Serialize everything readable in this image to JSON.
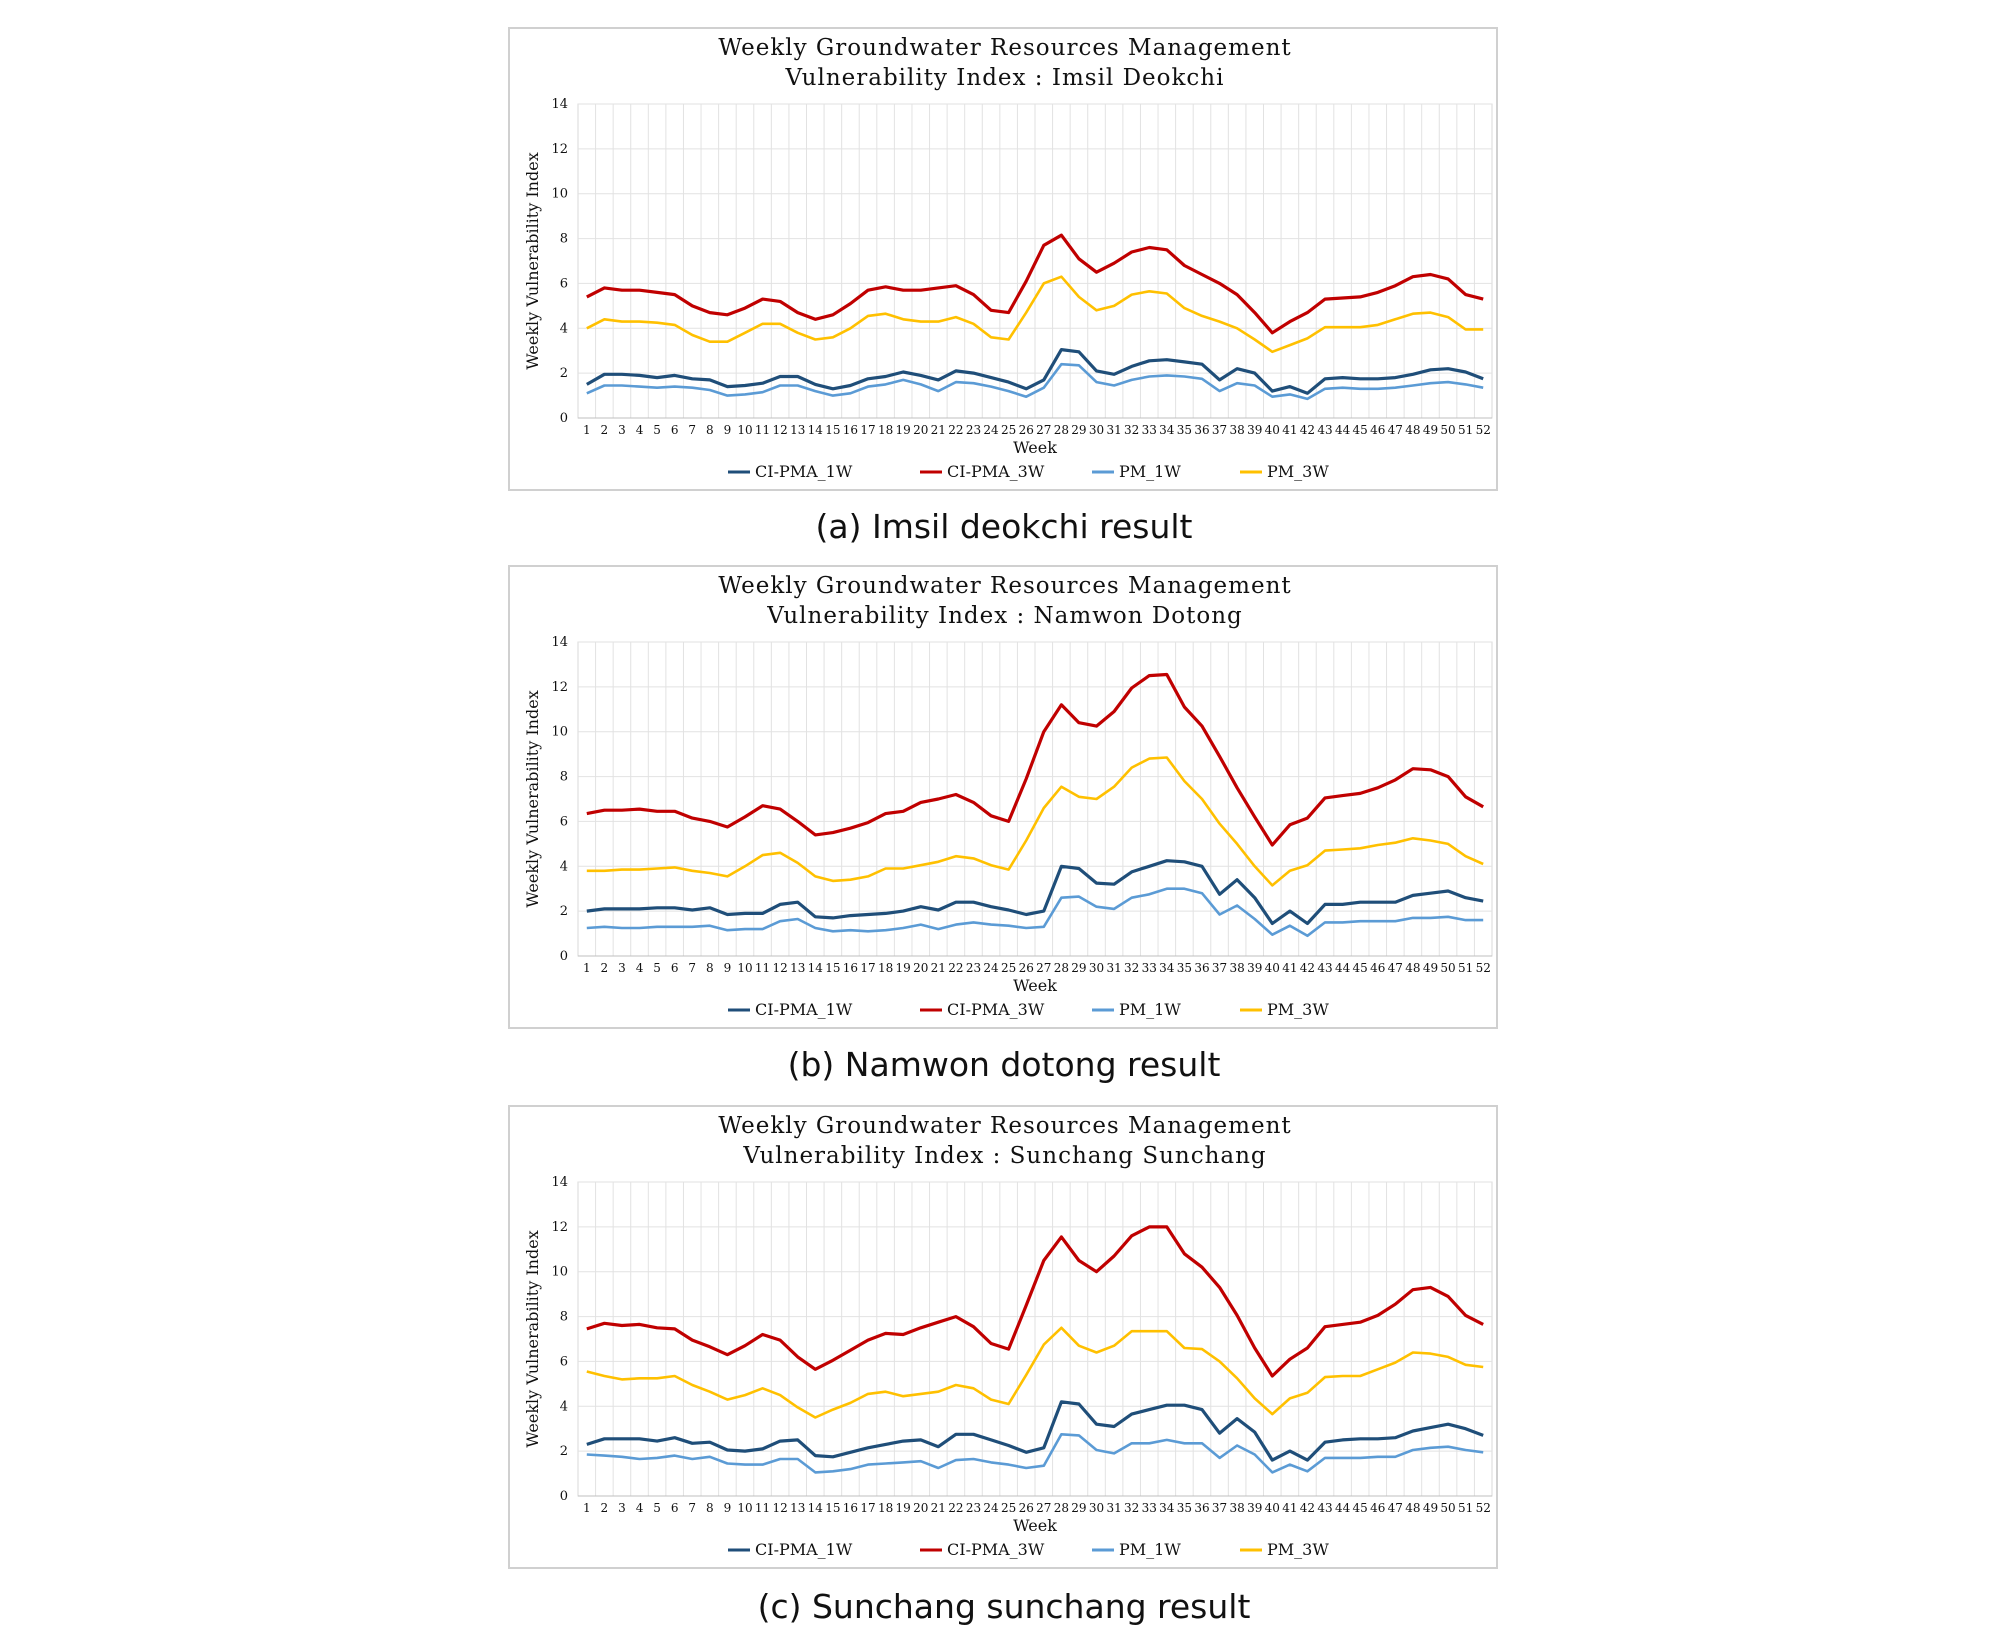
{
  "chart_data": [
    {
      "type": "line",
      "title_lines": [
        "Weekly Groundwater Resources Management",
        "Vulnerability Index : Imsil Deokchi"
      ],
      "caption": "(a) Imsil deokchi result",
      "xlabel": "Week",
      "ylabel": "Weekly Vulnerability Index",
      "ylim": [
        0,
        14
      ],
      "yticks": [
        0,
        2,
        4,
        6,
        8,
        10,
        12,
        14
      ],
      "grid": "on",
      "legend_position": "bottom",
      "x": [
        1,
        2,
        3,
        4,
        5,
        6,
        7,
        8,
        9,
        10,
        11,
        12,
        13,
        14,
        15,
        16,
        17,
        18,
        19,
        20,
        21,
        22,
        23,
        24,
        25,
        26,
        27,
        28,
        29,
        30,
        31,
        32,
        33,
        34,
        35,
        36,
        37,
        38,
        39,
        40,
        41,
        42,
        43,
        44,
        45,
        46,
        47,
        48,
        49,
        50,
        51,
        52
      ],
      "series": [
        {
          "name": "CI-PMA_1W",
          "color": "#1f4e79",
          "values": [
            1.5,
            1.95,
            1.95,
            1.9,
            1.8,
            1.9,
            1.75,
            1.7,
            1.4,
            1.45,
            1.55,
            1.85,
            1.85,
            1.5,
            1.3,
            1.45,
            1.75,
            1.85,
            2.05,
            1.9,
            1.7,
            2.1,
            2.0,
            1.8,
            1.6,
            1.3,
            1.7,
            3.05,
            2.95,
            2.1,
            1.95,
            2.3,
            2.55,
            2.6,
            2.5,
            2.4,
            1.7,
            2.2,
            2.0,
            1.2,
            1.4,
            1.1,
            1.75,
            1.8,
            1.75,
            1.75,
            1.8,
            1.95,
            2.15,
            2.2,
            2.05,
            1.75
          ]
        },
        {
          "name": "CI-PMA_3W",
          "color": "#c00000",
          "values": [
            5.4,
            5.8,
            5.7,
            5.7,
            5.6,
            5.5,
            5.0,
            4.7,
            4.6,
            4.9,
            5.3,
            5.2,
            4.7,
            4.4,
            4.6,
            5.1,
            5.7,
            5.85,
            5.7,
            5.7,
            5.8,
            5.9,
            5.5,
            4.8,
            4.7,
            6.1,
            7.7,
            8.15,
            7.1,
            6.5,
            6.9,
            7.4,
            7.6,
            7.5,
            6.8,
            6.4,
            6.0,
            5.5,
            4.7,
            3.8,
            4.3,
            4.7,
            5.3,
            5.35,
            5.4,
            5.6,
            5.9,
            6.3,
            6.4,
            6.2,
            5.5,
            5.3
          ]
        },
        {
          "name": "PM_1W",
          "color": "#5b9bd5",
          "values": [
            1.1,
            1.45,
            1.45,
            1.4,
            1.35,
            1.4,
            1.35,
            1.25,
            1.0,
            1.05,
            1.15,
            1.45,
            1.45,
            1.2,
            1.0,
            1.1,
            1.4,
            1.5,
            1.7,
            1.5,
            1.2,
            1.6,
            1.55,
            1.4,
            1.2,
            0.95,
            1.35,
            2.4,
            2.35,
            1.6,
            1.45,
            1.7,
            1.85,
            1.9,
            1.85,
            1.75,
            1.2,
            1.55,
            1.45,
            0.95,
            1.05,
            0.85,
            1.3,
            1.35,
            1.3,
            1.3,
            1.35,
            1.45,
            1.55,
            1.6,
            1.5,
            1.35
          ]
        },
        {
          "name": "PM_3W",
          "color": "#ffc000",
          "values": [
            4.0,
            4.4,
            4.3,
            4.3,
            4.25,
            4.15,
            3.7,
            3.4,
            3.4,
            3.8,
            4.2,
            4.2,
            3.8,
            3.5,
            3.6,
            4.0,
            4.55,
            4.65,
            4.4,
            4.3,
            4.3,
            4.5,
            4.2,
            3.6,
            3.5,
            4.7,
            6.0,
            6.3,
            5.4,
            4.8,
            5.0,
            5.5,
            5.65,
            5.55,
            4.9,
            4.55,
            4.3,
            4.0,
            3.5,
            2.95,
            3.25,
            3.55,
            4.05,
            4.05,
            4.05,
            4.15,
            4.4,
            4.65,
            4.7,
            4.5,
            3.95,
            3.95
          ]
        }
      ]
    },
    {
      "type": "line",
      "title_lines": [
        "Weekly Groundwater Resources Management",
        "Vulnerability Index : Namwon Dotong"
      ],
      "caption": "(b) Namwon dotong result",
      "xlabel": "Week",
      "ylabel": "Weekly Vulnerability Index",
      "ylim": [
        0,
        14
      ],
      "yticks": [
        0,
        2,
        4,
        6,
        8,
        10,
        12,
        14
      ],
      "grid": "on",
      "legend_position": "bottom",
      "x": [
        1,
        2,
        3,
        4,
        5,
        6,
        7,
        8,
        9,
        10,
        11,
        12,
        13,
        14,
        15,
        16,
        17,
        18,
        19,
        20,
        21,
        22,
        23,
        24,
        25,
        26,
        27,
        28,
        29,
        30,
        31,
        32,
        33,
        34,
        35,
        36,
        37,
        38,
        39,
        40,
        41,
        42,
        43,
        44,
        45,
        46,
        47,
        48,
        49,
        50,
        51,
        52
      ],
      "series": [
        {
          "name": "CI-PMA_1W",
          "color": "#1f4e79",
          "values": [
            2.0,
            2.1,
            2.1,
            2.1,
            2.15,
            2.15,
            2.05,
            2.15,
            1.85,
            1.9,
            1.9,
            2.3,
            2.4,
            1.75,
            1.7,
            1.8,
            1.85,
            1.9,
            2.0,
            2.2,
            2.05,
            2.4,
            2.4,
            2.2,
            2.05,
            1.85,
            2.0,
            4.0,
            3.9,
            3.25,
            3.2,
            3.75,
            4.0,
            4.25,
            4.2,
            4.0,
            2.75,
            3.4,
            2.6,
            1.45,
            2.0,
            1.45,
            2.3,
            2.3,
            2.4,
            2.4,
            2.4,
            2.7,
            2.8,
            2.9,
            2.6,
            2.45
          ]
        },
        {
          "name": "CI-PMA_3W",
          "color": "#c00000",
          "values": [
            6.35,
            6.5,
            6.5,
            6.55,
            6.45,
            6.45,
            6.15,
            6.0,
            5.75,
            6.2,
            6.7,
            6.55,
            6.0,
            5.4,
            5.5,
            5.7,
            5.95,
            6.35,
            6.45,
            6.85,
            7.0,
            7.2,
            6.85,
            6.25,
            6.0,
            7.9,
            10.0,
            11.2,
            10.4,
            10.25,
            10.9,
            11.95,
            12.5,
            12.55,
            11.1,
            10.25,
            8.9,
            7.5,
            6.2,
            4.95,
            5.85,
            6.15,
            7.05,
            7.15,
            7.25,
            7.5,
            7.85,
            8.35,
            8.3,
            8.0,
            7.1,
            6.65
          ]
        },
        {
          "name": "PM_1W",
          "color": "#5b9bd5",
          "values": [
            1.25,
            1.3,
            1.25,
            1.25,
            1.3,
            1.3,
            1.3,
            1.35,
            1.15,
            1.2,
            1.2,
            1.55,
            1.65,
            1.25,
            1.1,
            1.15,
            1.1,
            1.15,
            1.25,
            1.4,
            1.2,
            1.4,
            1.5,
            1.4,
            1.35,
            1.25,
            1.3,
            2.6,
            2.65,
            2.2,
            2.1,
            2.6,
            2.75,
            3.0,
            3.0,
            2.8,
            1.85,
            2.25,
            1.65,
            0.95,
            1.35,
            0.9,
            1.5,
            1.5,
            1.55,
            1.55,
            1.55,
            1.7,
            1.7,
            1.75,
            1.6,
            1.6
          ]
        },
        {
          "name": "PM_3W",
          "color": "#ffc000",
          "values": [
            3.8,
            3.8,
            3.85,
            3.85,
            3.9,
            3.95,
            3.8,
            3.7,
            3.55,
            4.0,
            4.5,
            4.6,
            4.15,
            3.55,
            3.35,
            3.4,
            3.55,
            3.9,
            3.9,
            4.05,
            4.2,
            4.45,
            4.35,
            4.05,
            3.85,
            5.15,
            6.6,
            7.55,
            7.1,
            7.0,
            7.55,
            8.4,
            8.8,
            8.85,
            7.8,
            7.0,
            5.9,
            5.0,
            4.0,
            3.15,
            3.8,
            4.05,
            4.7,
            4.75,
            4.8,
            4.95,
            5.05,
            5.25,
            5.15,
            5.0,
            4.45,
            4.1
          ]
        }
      ]
    },
    {
      "type": "line",
      "title_lines": [
        "Weekly Groundwater Resources Management",
        "Vulnerability Index : Sunchang Sunchang"
      ],
      "caption": "(c) Sunchang sunchang result",
      "xlabel": "Week",
      "ylabel": "Weekly Vulnerability Index",
      "ylim": [
        0,
        14
      ],
      "yticks": [
        0,
        2,
        4,
        6,
        8,
        10,
        12,
        14
      ],
      "grid": "on",
      "legend_position": "bottom",
      "x": [
        1,
        2,
        3,
        4,
        5,
        6,
        7,
        8,
        9,
        10,
        11,
        12,
        13,
        14,
        15,
        16,
        17,
        18,
        19,
        20,
        21,
        22,
        23,
        24,
        25,
        26,
        27,
        28,
        29,
        30,
        31,
        32,
        33,
        34,
        35,
        36,
        37,
        38,
        39,
        40,
        41,
        42,
        43,
        44,
        45,
        46,
        47,
        48,
        49,
        50,
        51,
        52
      ],
      "series": [
        {
          "name": "CI-PMA_1W",
          "color": "#1f4e79",
          "values": [
            2.3,
            2.55,
            2.55,
            2.55,
            2.45,
            2.6,
            2.35,
            2.4,
            2.05,
            2.0,
            2.1,
            2.45,
            2.5,
            1.8,
            1.75,
            1.95,
            2.15,
            2.3,
            2.45,
            2.5,
            2.2,
            2.75,
            2.75,
            2.5,
            2.25,
            1.95,
            2.15,
            4.2,
            4.1,
            3.2,
            3.1,
            3.65,
            3.85,
            4.05,
            4.05,
            3.85,
            2.8,
            3.45,
            2.85,
            1.6,
            2.0,
            1.6,
            2.4,
            2.5,
            2.55,
            2.55,
            2.6,
            2.9,
            3.05,
            3.2,
            3.0,
            2.7
          ]
        },
        {
          "name": "CI-PMA_3W",
          "color": "#c00000",
          "values": [
            7.45,
            7.7,
            7.6,
            7.65,
            7.5,
            7.45,
            6.95,
            6.65,
            6.3,
            6.7,
            7.2,
            6.95,
            6.2,
            5.65,
            6.05,
            6.5,
            6.95,
            7.25,
            7.2,
            7.5,
            7.75,
            8.0,
            7.55,
            6.8,
            6.55,
            8.5,
            10.5,
            11.55,
            10.5,
            10.0,
            10.7,
            11.6,
            12.0,
            12.0,
            10.8,
            10.2,
            9.3,
            8.05,
            6.6,
            5.35,
            6.1,
            6.6,
            7.55,
            7.65,
            7.75,
            8.05,
            8.55,
            9.2,
            9.3,
            8.9,
            8.05,
            7.65
          ]
        },
        {
          "name": "PM_1W",
          "color": "#5b9bd5",
          "values": [
            1.85,
            1.8,
            1.75,
            1.65,
            1.7,
            1.8,
            1.65,
            1.75,
            1.45,
            1.4,
            1.4,
            1.65,
            1.65,
            1.05,
            1.1,
            1.2,
            1.4,
            1.45,
            1.5,
            1.55,
            1.25,
            1.6,
            1.65,
            1.5,
            1.4,
            1.25,
            1.35,
            2.75,
            2.7,
            2.05,
            1.9,
            2.35,
            2.35,
            2.5,
            2.35,
            2.35,
            1.7,
            2.25,
            1.85,
            1.05,
            1.4,
            1.1,
            1.7,
            1.7,
            1.7,
            1.75,
            1.75,
            2.05,
            2.15,
            2.2,
            2.05,
            1.95
          ]
        },
        {
          "name": "PM_3W",
          "color": "#ffc000",
          "values": [
            5.55,
            5.35,
            5.2,
            5.25,
            5.25,
            5.35,
            4.95,
            4.65,
            4.3,
            4.5,
            4.8,
            4.5,
            3.95,
            3.5,
            3.85,
            4.15,
            4.55,
            4.65,
            4.45,
            4.55,
            4.65,
            4.95,
            4.8,
            4.3,
            4.1,
            5.4,
            6.75,
            7.5,
            6.7,
            6.4,
            6.7,
            7.35,
            7.35,
            7.35,
            6.6,
            6.55,
            6.0,
            5.25,
            4.35,
            3.65,
            4.35,
            4.6,
            5.3,
            5.35,
            5.35,
            5.65,
            5.95,
            6.4,
            6.35,
            6.2,
            5.85,
            5.75
          ]
        }
      ]
    }
  ]
}
